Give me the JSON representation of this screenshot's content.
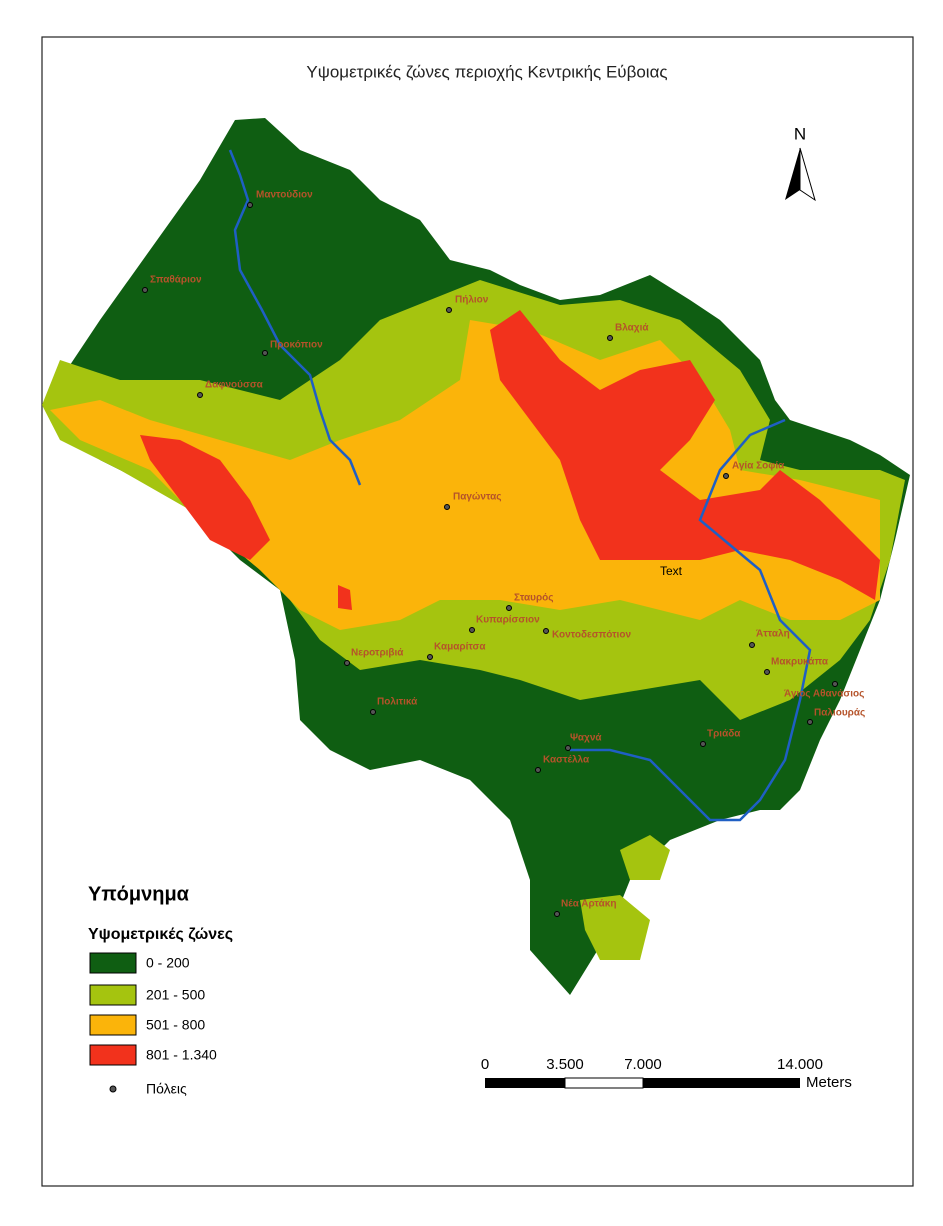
{
  "title": "Υψομετρικές ζώνες περιοχής Κεντρικής Εύβοιας",
  "north": "N",
  "annotation": "Text",
  "legend": {
    "title": "Υπόμνημα",
    "subtitle": "Υψομετρικές ζώνες",
    "items": [
      {
        "label": "0 - 200",
        "color": "#0f5e12"
      },
      {
        "label": "201 - 500",
        "color": "#a5c40f"
      },
      {
        "label": "501 - 800",
        "color": "#fbb40a"
      },
      {
        "label": "801 - 1.340",
        "color": "#f2321c"
      }
    ],
    "points_label": "Πόλεις"
  },
  "scale_bar": {
    "labels": [
      "0",
      "3.500",
      "7.000",
      "14.000"
    ],
    "unit": "Meters"
  },
  "towns": [
    "Μαντούδιον",
    "Σπαθάριον",
    "Πήλιον",
    "Βλαχιά",
    "Προκόπιον",
    "Δαφνούσσα",
    "Αγία Σοφία",
    "Παγώντας",
    "Σταυρός",
    "Κυπαρίσσιον",
    "Κοντοδεσπότιον",
    "Άτταλη",
    "Νεροτριβιά",
    "Καμαρίτσα",
    "Μακρυκάπα",
    "Άγιος Αθανάσιος",
    "Παλιουράς",
    "Πολιτικά",
    "Ψαχνά",
    "Καστέλλα",
    "Τριάδα",
    "Νέα Αρτάκη"
  ]
}
